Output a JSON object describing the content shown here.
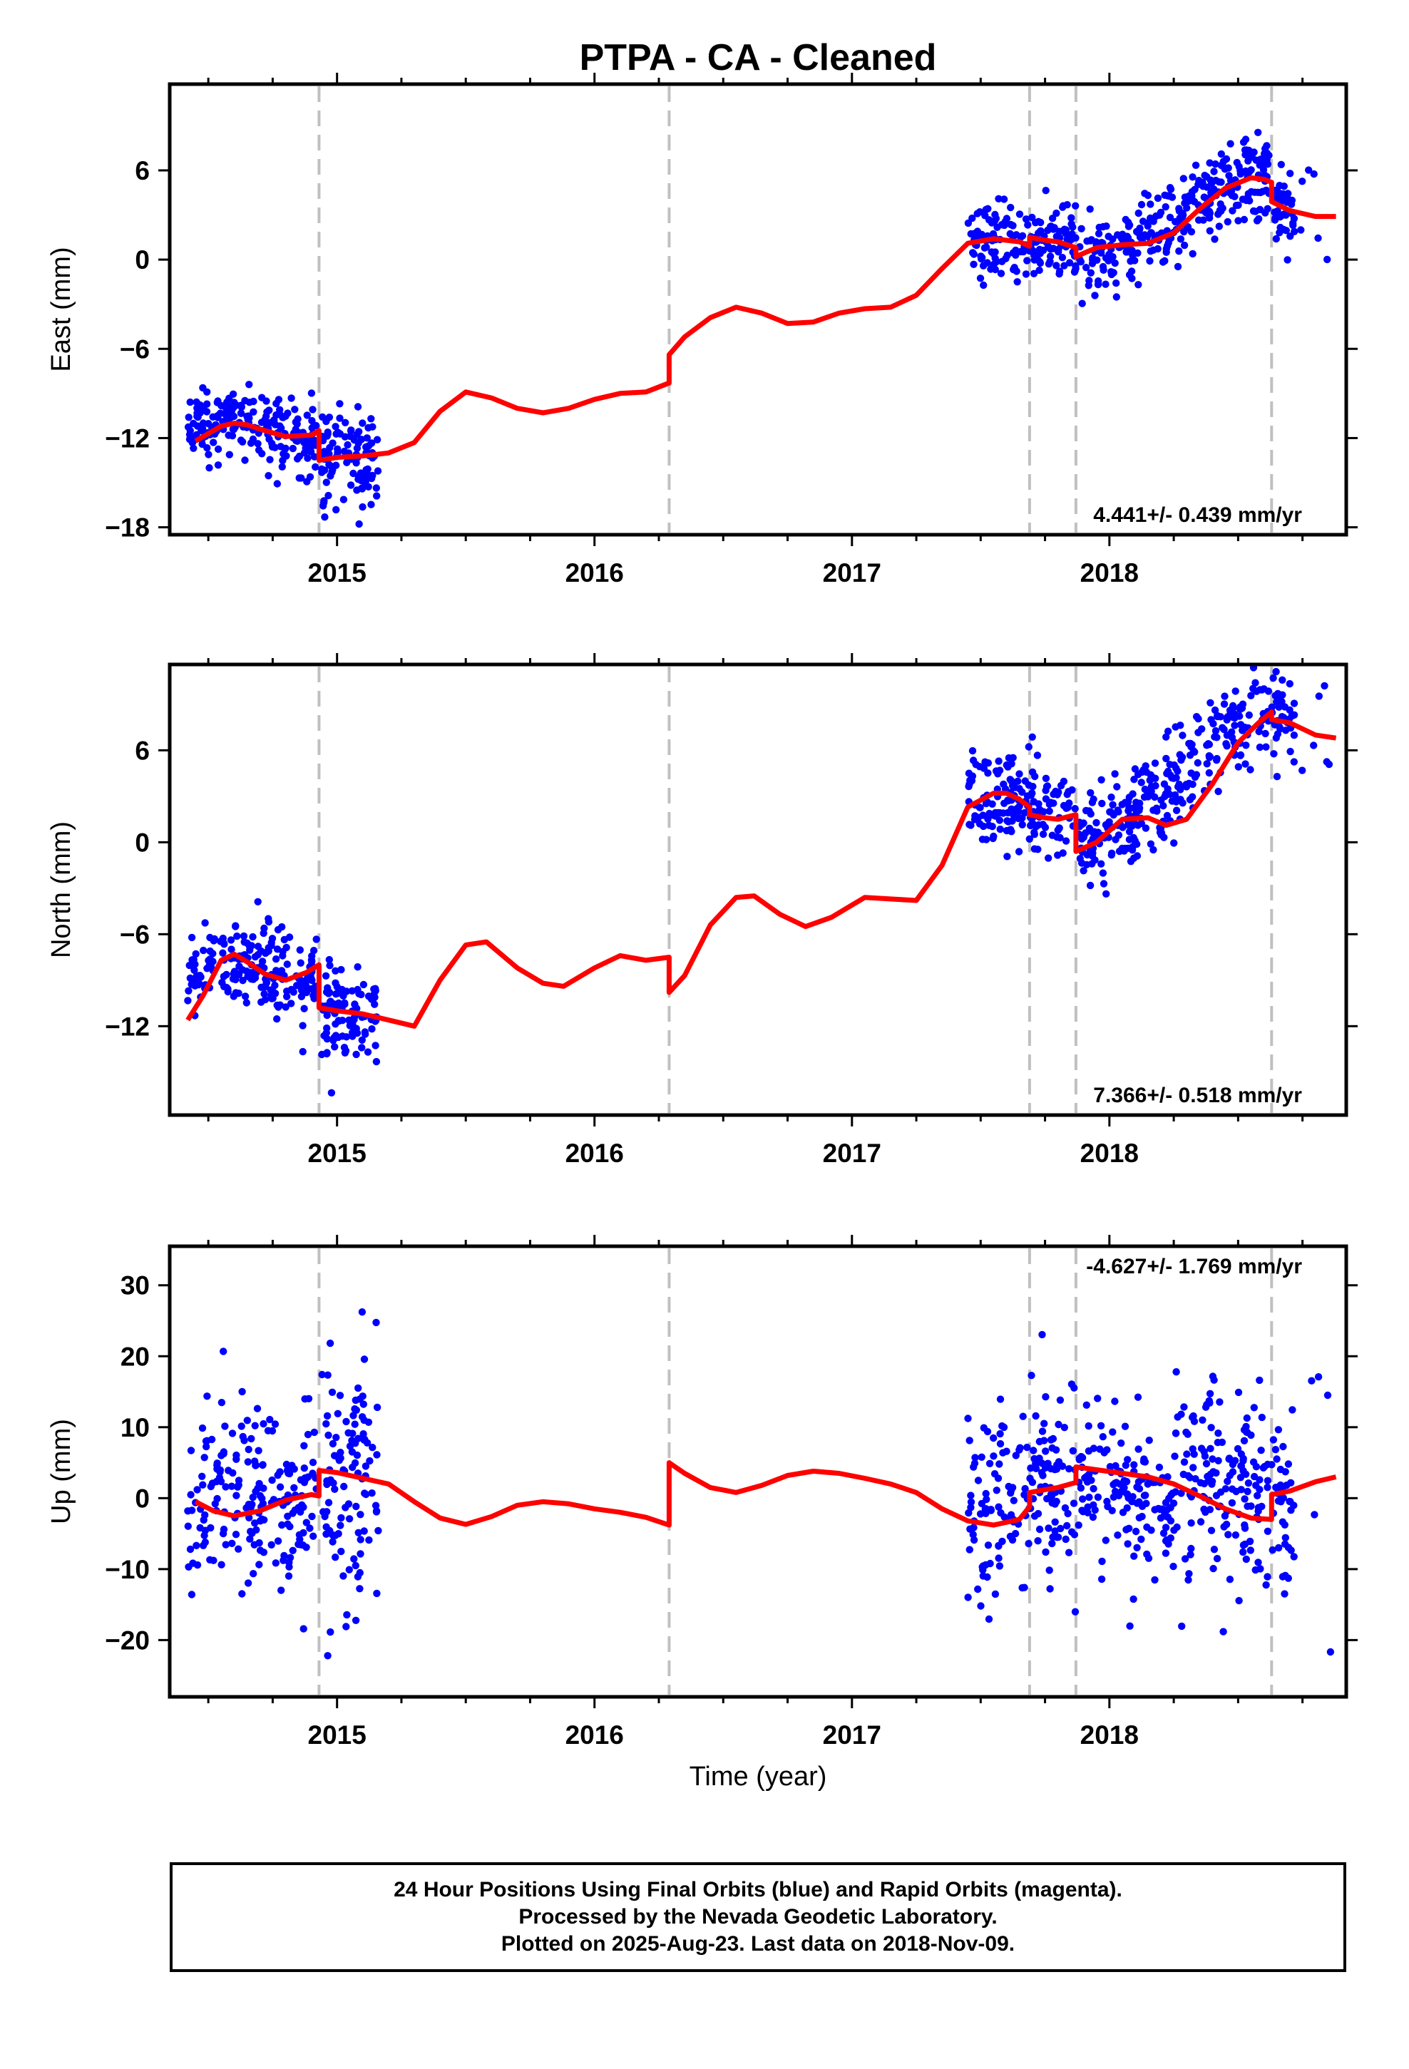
{
  "title": "PTPA  - CA - Cleaned",
  "colors": {
    "points": "#0000ff",
    "model": "#ff0000",
    "events": "#c0c0c0",
    "frame": "#000000"
  },
  "footer": {
    "line1": "24 Hour Positions Using Final Orbits (blue) and Rapid Orbits (magenta).",
    "line2": "Processed by the Nevada Geodetic Laboratory.",
    "line3": "Plotted on 2025-Aug-23. Last data on 2018-Nov-09."
  },
  "chart_data": [
    {
      "type": "scatter",
      "ylabel": "East (mm)",
      "xlabel": "",
      "rate": "4.441+/- 0.439 mm/yr",
      "rate_position": "bottom-right",
      "xlim": [
        2014.35,
        2018.92
      ],
      "ylim": [
        -18.5,
        11.8
      ],
      "xticks": [
        2015,
        2016,
        2017,
        2018
      ],
      "yticks": [
        -18,
        -12,
        -6,
        0,
        6
      ],
      "event_lines": [
        2014.93,
        2016.29,
        2017.69,
        2017.87,
        2018.63
      ],
      "model": {
        "x": [
          2014.45,
          2014.5,
          2014.55,
          2014.6,
          2014.65,
          2014.7,
          2014.8,
          2014.9,
          2014.93,
          2014.93,
          2015.0,
          2015.1,
          2015.2,
          2015.3,
          2015.4,
          2015.5,
          2015.6,
          2015.7,
          2015.8,
          2015.9,
          2016.0,
          2016.1,
          2016.2,
          2016.29,
          2016.29,
          2016.35,
          2016.45,
          2016.55,
          2016.65,
          2016.75,
          2016.85,
          2016.95,
          2017.05,
          2017.15,
          2017.25,
          2017.35,
          2017.45,
          2017.55,
          2017.65,
          2017.69,
          2017.69,
          2017.75,
          2017.8,
          2017.87,
          2017.87,
          2017.95,
          2018.05,
          2018.15,
          2018.25,
          2018.35,
          2018.45,
          2018.55,
          2018.6,
          2018.63,
          2018.63,
          2018.7,
          2018.8,
          2018.88
        ],
        "y": [
          -12.2,
          -11.7,
          -11.2,
          -11.0,
          -11.1,
          -11.4,
          -11.9,
          -11.8,
          -11.5,
          -13.5,
          -13.3,
          -13.2,
          -13.0,
          -12.3,
          -10.2,
          -8.9,
          -9.3,
          -10.0,
          -10.3,
          -10.0,
          -9.4,
          -9.0,
          -8.9,
          -8.3,
          -6.4,
          -5.2,
          -3.9,
          -3.2,
          -3.6,
          -4.3,
          -4.2,
          -3.6,
          -3.3,
          -3.2,
          -2.4,
          -0.6,
          1.1,
          1.4,
          1.2,
          0.9,
          1.5,
          1.3,
          1.2,
          0.8,
          0.2,
          0.8,
          1.0,
          1.1,
          1.8,
          3.4,
          4.8,
          5.5,
          5.4,
          5.2,
          3.9,
          3.3,
          2.9,
          2.9
        ]
      },
      "points": [
        {
          "x0": 2014.42,
          "x1": 2014.92,
          "n": 200,
          "m0": -12.0,
          "m1": -11.7,
          "amp": 1.0,
          "sd": 1.2
        },
        {
          "x0": 2014.94,
          "x1": 2015.16,
          "n": 110,
          "m0": -13.2,
          "m1": -13.6,
          "amp": 0.0,
          "sd": 1.8
        },
        {
          "x0": 2017.45,
          "x1": 2017.87,
          "n": 170,
          "m0": 1.1,
          "m1": 0.9,
          "amp": 0.2,
          "sd": 1.3
        },
        {
          "x0": 2017.88,
          "x1": 2018.62,
          "n": 300,
          "m0": 0.5,
          "m1": 5.2,
          "amp": 0.8,
          "sd": 1.4
        },
        {
          "x0": 2018.63,
          "x1": 2018.72,
          "n": 40,
          "m0": 4.0,
          "m1": 3.3,
          "amp": 0.0,
          "sd": 1.4
        },
        {
          "x0": 2018.74,
          "x1": 2018.86,
          "n": 6,
          "m0": 2.3,
          "m1": 3.0,
          "amp": 0.0,
          "sd": 3.0
        }
      ]
    },
    {
      "type": "scatter",
      "ylabel": "North (mm)",
      "xlabel": "",
      "rate": "7.366+/- 0.518 mm/yr",
      "rate_position": "bottom-right",
      "xlim": [
        2014.35,
        2018.92
      ],
      "ylim": [
        -17.8,
        11.6
      ],
      "xticks": [
        2015,
        2016,
        2017,
        2018
      ],
      "yticks": [
        -12,
        -6,
        0,
        6
      ],
      "event_lines": [
        2014.93,
        2016.29,
        2017.69,
        2017.87,
        2018.63
      ],
      "model": {
        "x": [
          2014.42,
          2014.48,
          2014.55,
          2014.6,
          2014.65,
          2014.72,
          2014.8,
          2014.88,
          2014.93,
          2014.93,
          2015.0,
          2015.1,
          2015.2,
          2015.3,
          2015.4,
          2015.5,
          2015.58,
          2015.7,
          2015.8,
          2015.88,
          2016.0,
          2016.1,
          2016.2,
          2016.29,
          2016.29,
          2016.35,
          2016.45,
          2016.55,
          2016.62,
          2016.72,
          2016.82,
          2016.92,
          2017.05,
          2017.15,
          2017.25,
          2017.35,
          2017.45,
          2017.55,
          2017.6,
          2017.65,
          2017.69,
          2017.69,
          2017.75,
          2017.8,
          2017.87,
          2017.87,
          2017.95,
          2018.05,
          2018.15,
          2018.22,
          2018.3,
          2018.4,
          2018.5,
          2018.58,
          2018.63,
          2018.63,
          2018.7,
          2018.8,
          2018.88
        ],
        "y": [
          -11.6,
          -10.0,
          -7.7,
          -7.3,
          -7.8,
          -8.6,
          -9.0,
          -8.5,
          -8.0,
          -10.8,
          -11.0,
          -11.2,
          -11.6,
          -12.0,
          -9.0,
          -6.7,
          -6.5,
          -8.2,
          -9.2,
          -9.4,
          -8.2,
          -7.4,
          -7.7,
          -7.5,
          -9.8,
          -8.7,
          -5.4,
          -3.6,
          -3.5,
          -4.7,
          -5.5,
          -4.9,
          -3.6,
          -3.7,
          -3.8,
          -1.5,
          2.3,
          3.2,
          3.2,
          2.8,
          2.3,
          1.8,
          1.6,
          1.5,
          1.8,
          -0.6,
          0.0,
          1.5,
          1.6,
          1.1,
          1.5,
          3.8,
          6.5,
          7.8,
          8.5,
          8.0,
          7.8,
          7.0,
          6.8
        ]
      },
      "points": [
        {
          "x0": 2014.42,
          "x1": 2014.92,
          "n": 200,
          "m0": -9.8,
          "m1": -8.2,
          "amp": 1.5,
          "sd": 1.3
        },
        {
          "x0": 2014.94,
          "x1": 2015.16,
          "n": 110,
          "m0": -10.8,
          "m1": -11.3,
          "amp": 0.0,
          "sd": 1.8
        },
        {
          "x0": 2017.45,
          "x1": 2017.87,
          "n": 170,
          "m0": 2.4,
          "m1": 1.6,
          "amp": 0.4,
          "sd": 1.5
        },
        {
          "x0": 2017.88,
          "x1": 2018.62,
          "n": 300,
          "m0": 0.3,
          "m1": 8.0,
          "amp": 0.8,
          "sd": 1.6
        },
        {
          "x0": 2018.63,
          "x1": 2018.72,
          "n": 40,
          "m0": 8.3,
          "m1": 7.6,
          "amp": 0.0,
          "sd": 1.6
        },
        {
          "x0": 2018.74,
          "x1": 2018.86,
          "n": 6,
          "m0": 7.8,
          "m1": 6.8,
          "amp": 0.0,
          "sd": 2.0
        }
      ]
    },
    {
      "type": "scatter",
      "ylabel": "Up (mm)",
      "xlabel": "Time (year)",
      "rate": "-4.627+/- 1.769 mm/yr",
      "rate_position": "top-right",
      "xlim": [
        2014.35,
        2018.92
      ],
      "ylim": [
        -28,
        35.5
      ],
      "xticks": [
        2015,
        2016,
        2017,
        2018
      ],
      "yticks": [
        -20,
        -10,
        0,
        10,
        20,
        30
      ],
      "event_lines": [
        2014.93,
        2016.29,
        2017.69,
        2017.87,
        2018.63
      ],
      "model": {
        "x": [
          2014.45,
          2014.52,
          2014.6,
          2014.7,
          2014.8,
          2014.9,
          2014.93,
          2014.93,
          2015.0,
          2015.1,
          2015.2,
          2015.3,
          2015.4,
          2015.5,
          2015.6,
          2015.7,
          2015.8,
          2015.9,
          2016.0,
          2016.1,
          2016.2,
          2016.29,
          2016.29,
          2016.35,
          2016.45,
          2016.55,
          2016.65,
          2016.75,
          2016.85,
          2016.95,
          2017.05,
          2017.15,
          2017.25,
          2017.35,
          2017.45,
          2017.55,
          2017.65,
          2017.69,
          2017.69,
          2017.75,
          2017.8,
          2017.87,
          2017.87,
          2017.95,
          2018.05,
          2018.15,
          2018.25,
          2018.35,
          2018.45,
          2018.55,
          2018.63,
          2018.63,
          2018.7,
          2018.8,
          2018.88
        ],
        "y": [
          -0.5,
          -1.8,
          -2.5,
          -1.8,
          -0.3,
          0.5,
          0.3,
          3.9,
          3.6,
          2.8,
          2.0,
          -0.5,
          -2.8,
          -3.7,
          -2.6,
          -1.0,
          -0.5,
          -0.8,
          -1.5,
          -2.0,
          -2.7,
          -3.8,
          5.0,
          3.5,
          1.5,
          0.8,
          1.8,
          3.2,
          3.8,
          3.5,
          2.8,
          2.0,
          0.8,
          -1.5,
          -3.2,
          -3.8,
          -3.0,
          -1.2,
          0.8,
          1.2,
          1.5,
          2.2,
          4.4,
          4.0,
          3.5,
          3.0,
          2.0,
          0.3,
          -1.5,
          -2.8,
          -3.0,
          0.5,
          1.0,
          2.3,
          3.0
        ]
      },
      "points": [
        {
          "x0": 2014.42,
          "x1": 2014.92,
          "n": 200,
          "m0": -1.0,
          "m1": 0.0,
          "amp": 2.0,
          "sd": 6.5
        },
        {
          "x0": 2014.94,
          "x1": 2015.16,
          "n": 110,
          "m0": 3.0,
          "m1": 2.0,
          "amp": 0.0,
          "sd": 8.5
        },
        {
          "x0": 2017.45,
          "x1": 2017.87,
          "n": 170,
          "m0": -3.0,
          "m1": 1.5,
          "amp": 2.0,
          "sd": 7.0
        },
        {
          "x0": 2017.88,
          "x1": 2018.62,
          "n": 300,
          "m0": 4.0,
          "m1": -2.5,
          "amp": 1.5,
          "sd": 6.5
        },
        {
          "x0": 2018.63,
          "x1": 2018.72,
          "n": 40,
          "m0": 0.0,
          "m1": 1.0,
          "amp": 0.0,
          "sd": 6.0
        },
        {
          "x0": 2018.74,
          "x1": 2018.86,
          "n": 6,
          "m0": 3.0,
          "m1": 5.0,
          "amp": 0.0,
          "sd": 12.0
        }
      ]
    }
  ]
}
